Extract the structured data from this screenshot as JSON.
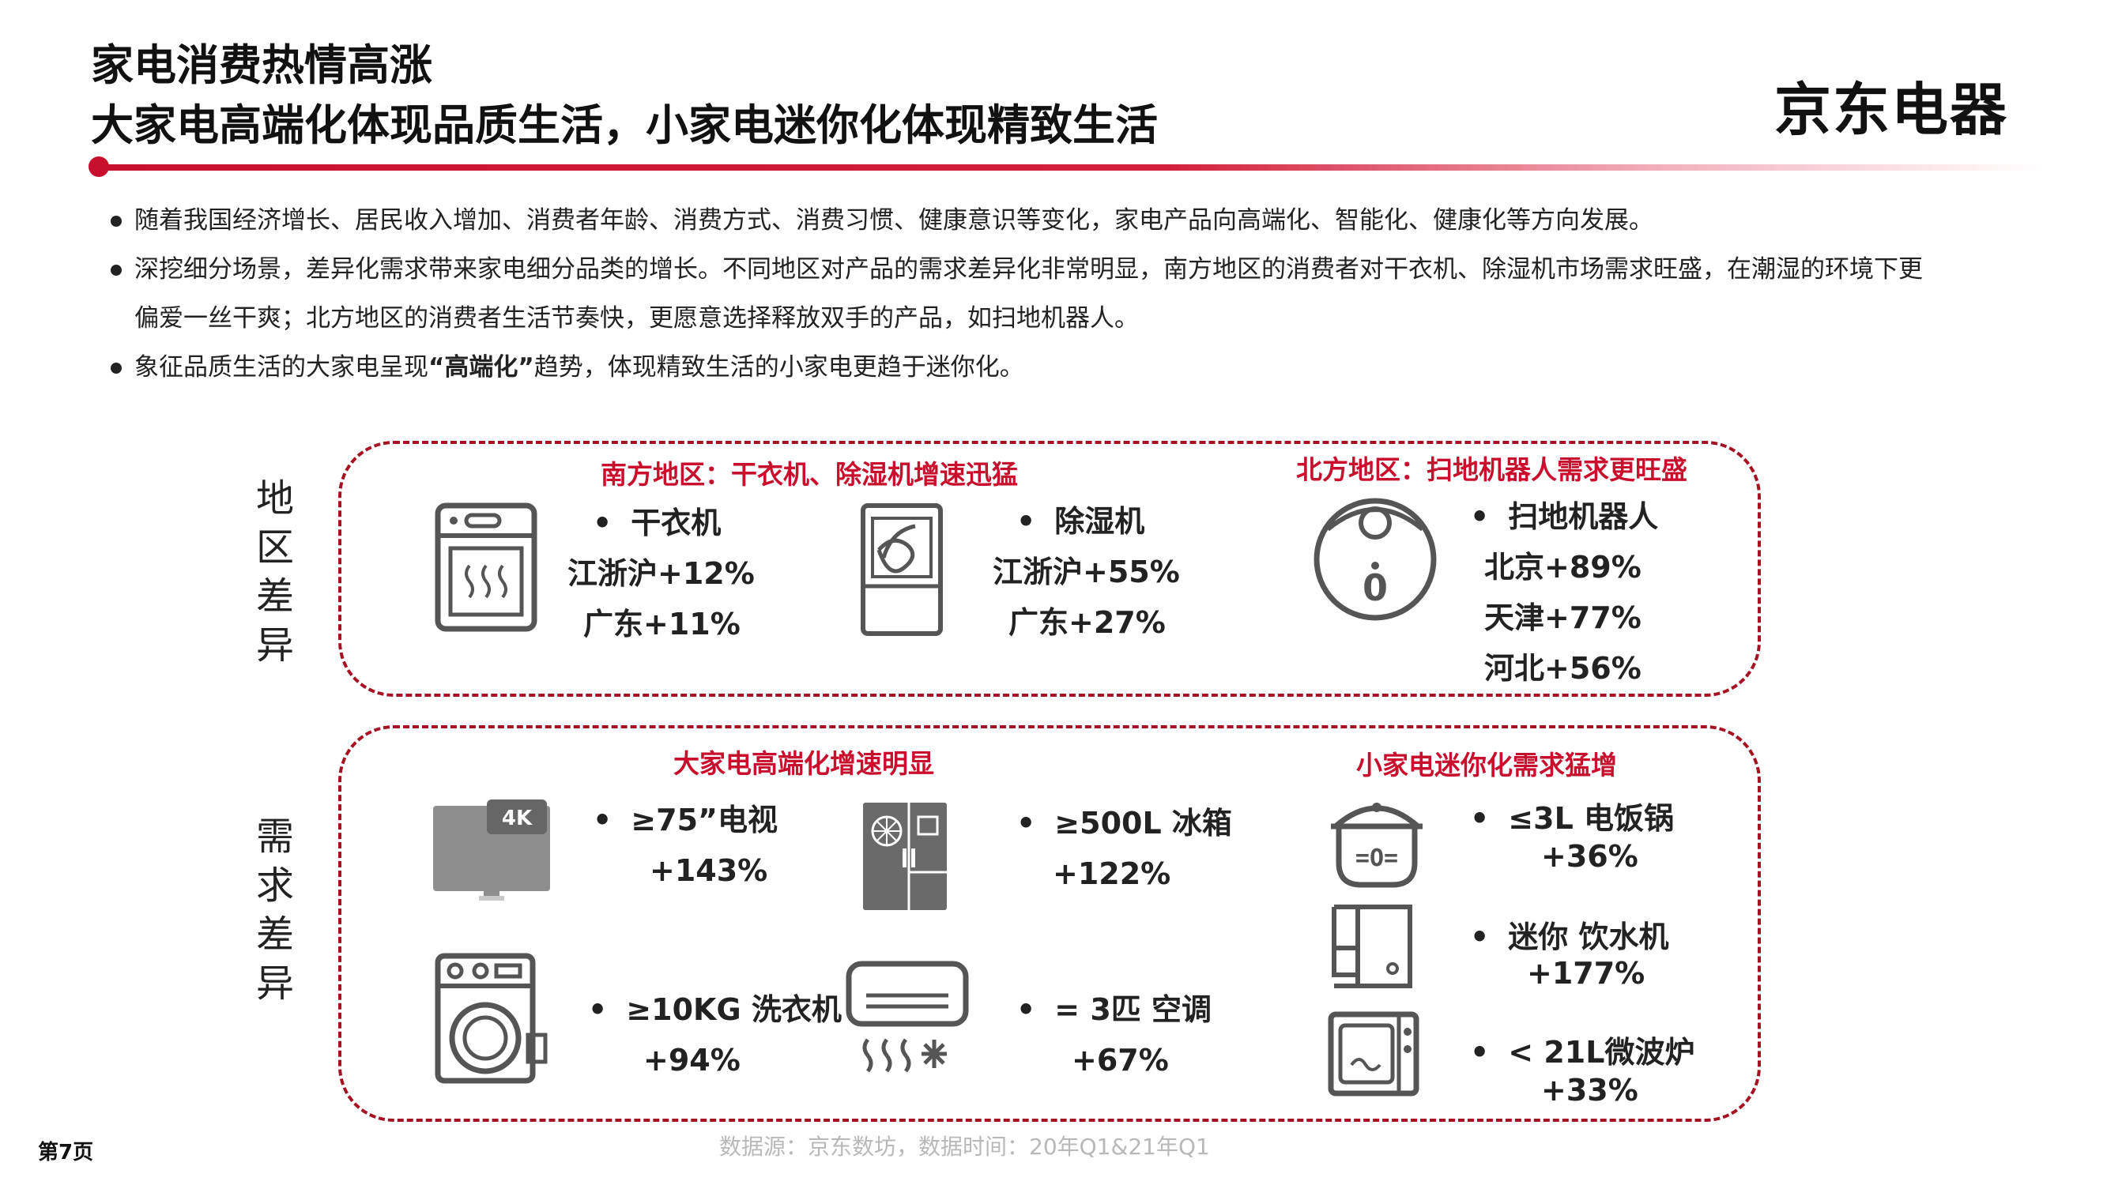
{
  "header": {
    "title_line1": "家电消费热情高涨",
    "title_line2": "大家电高端化体现品质生活，小家电迷你化体现精致生活",
    "brand": "京东电器"
  },
  "bullets": [
    "随着我国经济增长、居民收入增加、消费者年龄、消费方式、消费习惯、健康意识等变化，家电产品向高端化、智能化、健康化等方向发展。",
    "深挖细分场景，差异化需求带来家电细分品类的增长。不同地区对产品的需求差异化非常明显，南方地区的消费者对干衣机、除湿机市场需求旺盛，在潮湿的环境下更偏爱一丝干爽；北方地区的消费者生活节奏快，更愿意选择释放双手的产品，如扫地机器人。"
  ],
  "bullet3": {
    "prefix": "象征品质生活的大家电呈现",
    "highlight": "“高端化”",
    "suffix": "趋势，体现精致生活的小家电更趋于迷你化。"
  },
  "regional": {
    "label": "地区差异",
    "south_title": "南方地区：干衣机、除湿机增速迅猛",
    "north_title": "北方地区：扫地机器人需求更旺盛",
    "dryer": {
      "name": "干衣机",
      "line1": "江浙沪+12%",
      "line2": "广东+11%"
    },
    "dehumidifier": {
      "name": "除湿机",
      "line1": "江浙沪+55%",
      "line2": "广东+27%"
    },
    "robot": {
      "name": "扫地机器人",
      "line1": "北京+89%",
      "line2": "天津+77%",
      "line3": "河北+56%"
    }
  },
  "demand": {
    "label": "需求差异",
    "large_title": "大家电高端化增速明显",
    "small_title": "小家电迷你化需求猛增",
    "tv": {
      "name": "≥75”电视",
      "value": "+143%",
      "badge": "4K"
    },
    "fridge": {
      "name": "≥500L 冰箱",
      "value": "+122%"
    },
    "washer": {
      "name": "≥10KG 洗衣机",
      "value": "+94%"
    },
    "ac": {
      "name": "= 3匹 空调",
      "value": "+67%"
    },
    "cooker": {
      "name": "≤3L  电饭锅",
      "value": "+36%"
    },
    "water": {
      "name": "迷你 饮水机",
      "value": "+177%"
    },
    "microwave": {
      "name": "< 21L微波炉",
      "value": "+33%"
    }
  },
  "footer": {
    "source": "数据源：京东数坊，数据时间：20年Q1&21年Q1",
    "page": "第7页"
  },
  "colors": {
    "accent": "#c8102e",
    "dashed_border": "#a51224",
    "icon_gray": "#555555"
  }
}
